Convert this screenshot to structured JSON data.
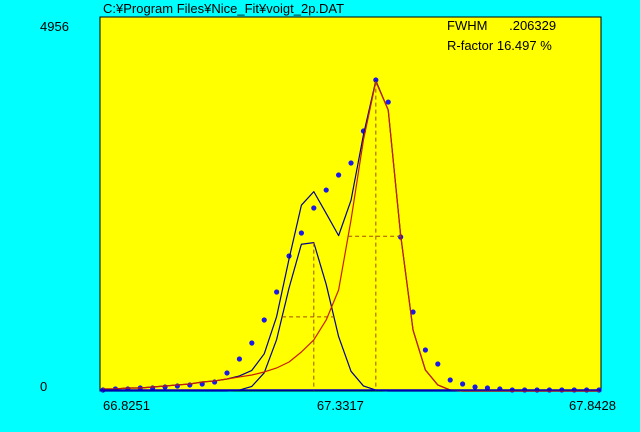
{
  "chart_data": {
    "type": "scatter",
    "title": "C:¥Program Files¥Nice_Fit¥voigt_2p.DAT",
    "annotations": [
      "FWHM      .206329",
      "R-factor 16.497 %"
    ],
    "xlim": [
      66.8251,
      67.8428
    ],
    "xticks": [
      66.8251,
      67.3317,
      67.8428
    ],
    "ylim": [
      0,
      4956
    ],
    "yticks": [
      0,
      4956
    ],
    "grid": false,
    "x": [
      66.8312,
      66.8564,
      66.8816,
      66.9068,
      66.932,
      66.9572,
      66.9823,
      67.0075,
      67.0327,
      67.0579,
      67.0831,
      67.1083,
      67.1335,
      67.1587,
      67.1839,
      67.2091,
      67.2342,
      67.2594,
      67.2846,
      67.3098,
      67.335,
      67.3602,
      67.3854,
      67.4106,
      67.4358,
      67.461,
      67.4861,
      67.5113,
      67.5365,
      67.5617,
      67.5869,
      67.6121,
      67.6373,
      67.6625,
      67.6877,
      67.7129,
      67.738,
      67.7632,
      67.7884,
      67.8136,
      67.8388
    ],
    "series": [
      {
        "style": "points",
        "color": "#1a1ae6",
        "values": [
          13,
          27,
          27,
          40,
          40,
          53,
          66,
          80,
          93,
          119,
          239,
          424,
          636,
          941,
          1312,
          1789,
          2094,
          2425,
          2663,
          2862,
          3021,
          3445,
          4121,
          3829,
          2041,
          1047,
          543,
          358,
          146,
          93,
          53,
          40,
          27,
          13,
          13,
          13,
          13,
          13,
          13,
          13,
          13
        ]
      },
      {
        "style": "line",
        "color": "#00008c",
        "values": [
          27,
          27,
          40,
          40,
          53,
          66,
          80,
          93,
          119,
          133,
          159,
          199,
          273,
          493,
          987,
          1749,
          2462,
          2642,
          2353,
          2059,
          2527,
          3393,
          4113,
          3723,
          2067,
          808,
          278,
          80,
          13,
          0,
          0,
          0,
          0,
          0,
          0,
          0,
          0,
          0,
          0,
          0,
          0
        ]
      },
      {
        "style": "line",
        "color": "#00008c",
        "center": true,
        "values": [
          0,
          0,
          0,
          0,
          0,
          0,
          0,
          0,
          0,
          0,
          0,
          13,
          61,
          241,
          682,
          1365,
          1945,
          1966,
          1412,
          721,
          261,
          67,
          13,
          0,
          0,
          0,
          0,
          0,
          0,
          0,
          0,
          0,
          0,
          0,
          0,
          0,
          0,
          0,
          0,
          0,
          0
        ]
      },
      {
        "style": "line",
        "color": "#c81e00",
        "center": true,
        "values": [
          27,
          27,
          40,
          40,
          53,
          66,
          80,
          93,
          119,
          133,
          159,
          186,
          212,
          252,
          305,
          384,
          517,
          676,
          941,
          1338,
          2266,
          3326,
          4100,
          3723,
          2067,
          808,
          278,
          80,
          13,
          0,
          0,
          0,
          0,
          0,
          0,
          0,
          0,
          0,
          0,
          0,
          0
        ]
      }
    ]
  }
}
